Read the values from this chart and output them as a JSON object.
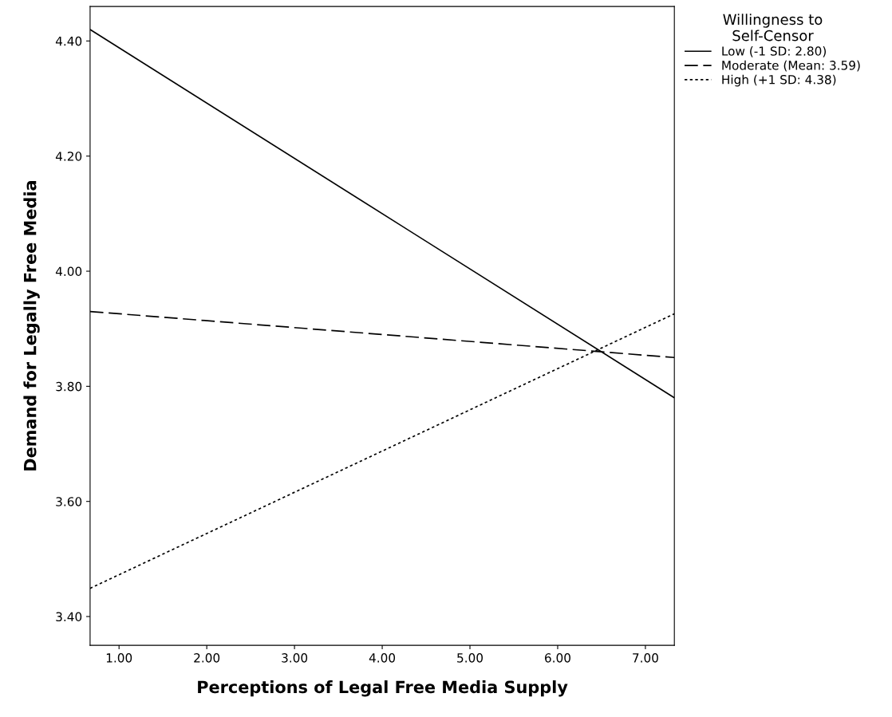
{
  "chart_data": {
    "type": "line",
    "xlabel": "Perceptions of Legal Free Media Supply",
    "ylabel": "Demand for Legally Free Media",
    "legend_title": "Willingness to\nSelf-Censor",
    "x": [
      0.67,
      7.33
    ],
    "series": [
      {
        "name": "Low (-1 SD: 2.80)",
        "color": "#000000",
        "line_style": "solid",
        "values": [
          4.42,
          3.78
        ]
      },
      {
        "name": "Moderate (Mean: 3.59)",
        "color": "#000000",
        "line_style": "dashed",
        "values": [
          3.93,
          3.85
        ]
      },
      {
        "name": "High (+1 SD: 4.38)",
        "color": "#000000",
        "line_style": "dotted",
        "values": [
          3.449,
          3.926
        ]
      }
    ],
    "xlim": [
      0.67,
      7.33
    ],
    "ylim": [
      3.35,
      4.46
    ],
    "xticks": [
      {
        "value": 1,
        "label": "1.00"
      },
      {
        "value": 2,
        "label": "2.00"
      },
      {
        "value": 3,
        "label": "3.00"
      },
      {
        "value": 4,
        "label": "4.00"
      },
      {
        "value": 5,
        "label": "5.00"
      },
      {
        "value": 6,
        "label": "6.00"
      },
      {
        "value": 7,
        "label": "7.00"
      }
    ],
    "yticks": [
      {
        "value": 3.4,
        "label": "3.40"
      },
      {
        "value": 3.6,
        "label": "3.60"
      },
      {
        "value": 3.8,
        "label": "3.80"
      },
      {
        "value": 4.0,
        "label": "4.00"
      },
      {
        "value": 4.2,
        "label": "4.20"
      },
      {
        "value": 4.4,
        "label": "4.40"
      }
    ],
    "grid": false,
    "legend": "top right"
  }
}
